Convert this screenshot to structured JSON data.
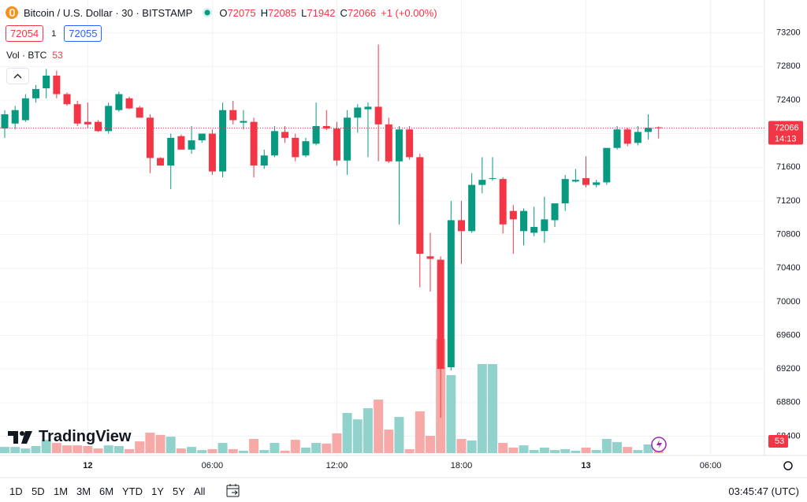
{
  "chart_data": {
    "type": "candlestick",
    "title": "Bitcoin / U.S. Dollar · 30 · BITSTAMP",
    "ohlc_labels": [
      "O",
      "H",
      "L",
      "C"
    ],
    "change": "+1 (+0.00%)",
    "bid": 72054,
    "spread": 1,
    "ask": 72055,
    "volume_title": "Vol · BTC",
    "countdown": "14:13",
    "categories": [
      null,
      null,
      null,
      null,
      null,
      null,
      null,
      null,
      "12",
      null,
      null,
      null,
      null,
      null,
      null,
      null,
      null,
      null,
      null,
      null,
      "06:00",
      null,
      null,
      null,
      null,
      null,
      null,
      null,
      null,
      null,
      null,
      null,
      "12:00",
      null,
      null,
      null,
      null,
      null,
      null,
      null,
      null,
      null,
      null,
      null,
      "18:00",
      null,
      null,
      null,
      null,
      null,
      null,
      null,
      null,
      null,
      null,
      null,
      "13",
      null,
      null,
      null,
      null,
      null,
      null,
      null,
      null,
      null,
      null,
      null,
      "06:00",
      null,
      null,
      null,
      null,
      null
    ],
    "open": [
      72060,
      72120,
      72160,
      72420,
      72540,
      72690,
      72470,
      72350,
      72140,
      72140,
      72030,
      72280,
      72420,
      72310,
      72190,
      71710,
      71620,
      71970,
      71810,
      71920,
      72000,
      71550,
      72280,
      72130,
      72140,
      71620,
      71740,
      72020,
      71950,
      71740,
      71880,
      72090,
      72060,
      71680,
      72190,
      72290,
      72320,
      72110,
      71670,
      72050,
      71720,
      70540,
      70500,
      69220,
      70970,
      70840,
      71390,
      71460,
      71460,
      71080,
      70840,
      70820,
      70840,
      70970,
      71170,
      71430,
      71470,
      71390,
      71420,
      71830,
      72050,
      71890,
      72020,
      72075,
      null,
      null,
      null,
      null,
      null,
      null,
      null,
      null,
      null,
      null
    ],
    "high": [
      72280,
      72330,
      72470,
      72580,
      72770,
      72750,
      72490,
      72390,
      72370,
      72160,
      72370,
      72500,
      72440,
      72330,
      72230,
      71720,
      72000,
      71990,
      72090,
      72000,
      72050,
      72370,
      72390,
      72280,
      72190,
      71810,
      72090,
      72090,
      72000,
      71950,
      72370,
      72280,
      72140,
      72280,
      72350,
      72370,
      73060,
      72190,
      72090,
      72090,
      71760,
      70820,
      70540,
      71200,
      71200,
      71530,
      71720,
      71720,
      71480,
      71150,
      71110,
      71130,
      71250,
      71170,
      71510,
      71580,
      71730,
      71450,
      71830,
      72090,
      72070,
      72090,
      72230,
      72085,
      null,
      null,
      null,
      null,
      null,
      null,
      null,
      null,
      null,
      null
    ],
    "low": [
      71950,
      72050,
      72140,
      72370,
      72420,
      72420,
      72330,
      72090,
      72070,
      72020,
      72000,
      72260,
      72290,
      72190,
      71530,
      71620,
      71340,
      71810,
      71760,
      71890,
      71510,
      71480,
      72110,
      72050,
      71480,
      71580,
      71720,
      71890,
      71670,
      71720,
      71860,
      72040,
      71620,
      71510,
      72010,
      71720,
      71670,
      71650,
      70920,
      71690,
      70170,
      70120,
      68620,
      69180,
      70450,
      70820,
      71290,
      71440,
      70810,
      70570,
      70670,
      70780,
      70700,
      70890,
      71080,
      71420,
      71360,
      71360,
      71390,
      71810,
      71850,
      71860,
      71930,
      71942,
      null,
      null,
      null,
      null,
      null,
      null,
      null,
      null,
      null,
      null
    ],
    "close": [
      72230,
      72280,
      72420,
      72530,
      72690,
      72470,
      72350,
      72120,
      72110,
      72030,
      72330,
      72470,
      72300,
      72190,
      71710,
      71620,
      71950,
      71810,
      71920,
      72000,
      71550,
      72280,
      72160,
      72150,
      71620,
      71740,
      72030,
      71950,
      71720,
      71910,
      72090,
      72060,
      71680,
      72190,
      72310,
      72320,
      72110,
      71670,
      72050,
      71720,
      70570,
      70510,
      69200,
      70970,
      70840,
      71390,
      71450,
      71470,
      70920,
      70980,
      71080,
      70890,
      70980,
      71170,
      71460,
      71450,
      71390,
      71420,
      71830,
      72050,
      71880,
      72020,
      72070,
      72066,
      null,
      null,
      null,
      null,
      null,
      null,
      null,
      null,
      null,
      null
    ],
    "volume": [
      28,
      28,
      21,
      32,
      60,
      46,
      35,
      35,
      32,
      21,
      35,
      32,
      18,
      53,
      92,
      82,
      74,
      21,
      28,
      14,
      18,
      46,
      18,
      11,
      64,
      14,
      46,
      11,
      60,
      25,
      46,
      43,
      89,
      181,
      152,
      202,
      241,
      106,
      163,
      18,
      188,
      78,
      514,
      351,
      64,
      57,
      401,
      401,
      46,
      25,
      35,
      14,
      25,
      14,
      18,
      11,
      25,
      14,
      64,
      50,
      28,
      14,
      39,
      53,
      null,
      null,
      null,
      null,
      null,
      null,
      null,
      null,
      null,
      null
    ],
    "up_color": "#089981",
    "down_color": "#f23645",
    "volume_up_color": "#92d2cc",
    "volume_down_color": "#f7a9a7",
    "ylim": [
      68170,
      73590
    ],
    "yticks": [
      68400,
      68800,
      69200,
      69600,
      70000,
      70400,
      70800,
      71200,
      71600,
      72000,
      72400,
      72800,
      73200
    ],
    "volume_ylim": [
      0,
      2000
    ],
    "grid": true
  },
  "brand": "TradingView",
  "toolbar": {
    "ranges": [
      "1D",
      "5D",
      "1M",
      "3M",
      "6M",
      "YTD",
      "1Y",
      "5Y",
      "All"
    ],
    "clock": "03:45:47 (UTC)"
  }
}
